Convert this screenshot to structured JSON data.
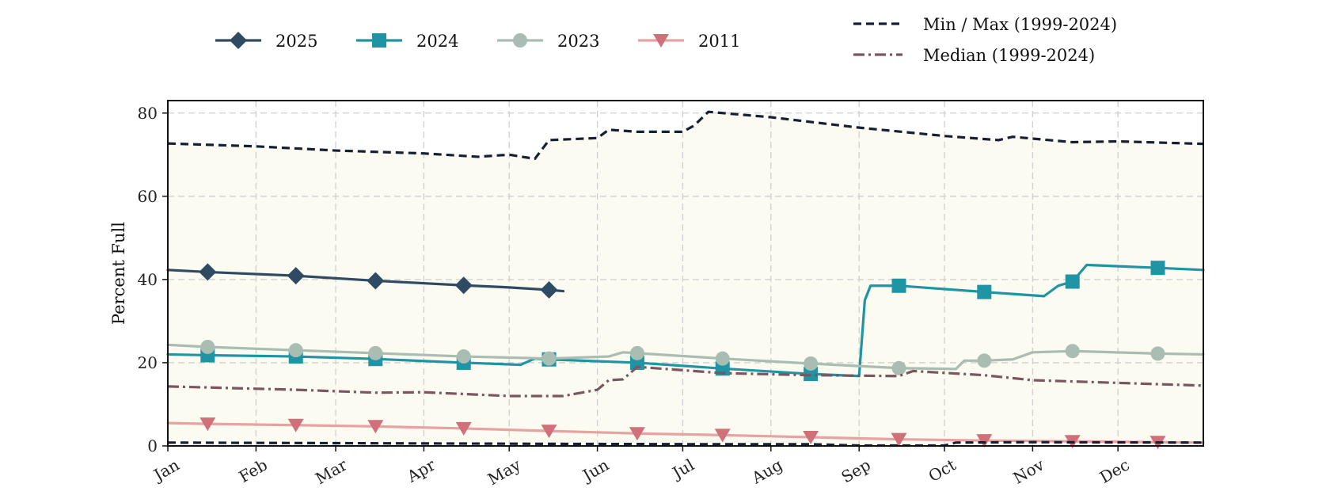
{
  "chart_data": {
    "type": "line",
    "ylabel": "Percent Full",
    "ylim": [
      0,
      83
    ],
    "yticks": [
      0,
      20,
      40,
      60,
      80
    ],
    "x_range": [
      "Jan 1",
      "Dec 31"
    ],
    "month_labels": [
      "Jan",
      "Feb",
      "Mar",
      "Apr",
      "May",
      "Jun",
      "Jul",
      "Aug",
      "Sep",
      "Oct",
      "Nov",
      "Dec"
    ],
    "grid": true,
    "legend_position": "top",
    "series": [
      {
        "name": "2025",
        "color": "#2f4b63",
        "marker": "diamond",
        "style": "solid",
        "points": [
          [
            "Jan 1",
            42.3
          ],
          [
            "Jan 15",
            41.8
          ],
          [
            "Feb 15",
            40.9
          ],
          [
            "Mar 15",
            39.7
          ],
          [
            "Apr 15",
            38.6
          ],
          [
            "May 1",
            38.1
          ],
          [
            "May 15",
            37.5
          ],
          [
            "May 20",
            37.2
          ]
        ]
      },
      {
        "name": "2024",
        "color": "#1f94a4",
        "marker": "square",
        "style": "solid",
        "points": [
          [
            "Jan 1",
            22.0
          ],
          [
            "Jan 15",
            21.8
          ],
          [
            "Feb 15",
            21.5
          ],
          [
            "Mar 15",
            20.9
          ],
          [
            "Apr 15",
            20.0
          ],
          [
            "May 5",
            19.5
          ],
          [
            "May 10",
            21.0
          ],
          [
            "May 15",
            20.8
          ],
          [
            "Jun 15",
            20.0
          ],
          [
            "Jul 15",
            18.6
          ],
          [
            "Aug 15",
            17.3
          ],
          [
            "Sep 1",
            16.8
          ],
          [
            "Sep 3",
            35.0
          ],
          [
            "Sep 5",
            38.5
          ],
          [
            "Sep 15",
            38.5
          ],
          [
            "Oct 15",
            37.0
          ],
          [
            "Nov 5",
            36.0
          ],
          [
            "Nov 10",
            38.5
          ],
          [
            "Nov 15",
            39.5
          ],
          [
            "Nov 20",
            43.5
          ],
          [
            "Dec 15",
            42.8
          ],
          [
            "Dec 31",
            42.3
          ]
        ]
      },
      {
        "name": "2023",
        "color": "#a9bdb2",
        "marker": "circle",
        "style": "solid",
        "points": [
          [
            "Jan 1",
            24.3
          ],
          [
            "Jan 15",
            23.8
          ],
          [
            "Feb 15",
            23.0
          ],
          [
            "Mar 15",
            22.3
          ],
          [
            "Apr 15",
            21.5
          ],
          [
            "May 15",
            21.0
          ],
          [
            "Jun 5",
            21.5
          ],
          [
            "Jun 10",
            22.5
          ],
          [
            "Jun 15",
            22.3
          ],
          [
            "Jul 15",
            21.0
          ],
          [
            "Aug 15",
            19.8
          ],
          [
            "Sep 15",
            18.7
          ],
          [
            "Oct 5",
            18.5
          ],
          [
            "Oct 8",
            20.5
          ],
          [
            "Oct 15",
            20.5
          ],
          [
            "Oct 25",
            20.8
          ],
          [
            "Nov 1",
            22.5
          ],
          [
            "Nov 15",
            22.8
          ],
          [
            "Dec 15",
            22.2
          ],
          [
            "Dec 31",
            22.0
          ]
        ]
      },
      {
        "name": "2011",
        "color": "#e8a2a2",
        "marker_color": "#d0707a",
        "marker": "triangle-down",
        "style": "solid",
        "points": [
          [
            "Jan 1",
            5.5
          ],
          [
            "Jan 15",
            5.3
          ],
          [
            "Feb 15",
            5.0
          ],
          [
            "Mar 15",
            4.7
          ],
          [
            "Apr 15",
            4.2
          ],
          [
            "May 15",
            3.6
          ],
          [
            "Jun 15",
            3.0
          ],
          [
            "Jul 15",
            2.6
          ],
          [
            "Aug 15",
            2.1
          ],
          [
            "Sep 15",
            1.6
          ],
          [
            "Oct 15",
            1.3
          ],
          [
            "Nov 15",
            1.1
          ],
          [
            "Dec 15",
            0.9
          ],
          [
            "Dec 31",
            0.8
          ]
        ]
      },
      {
        "name": "Min / Max (1999-2024)",
        "role": "max",
        "color": "#152033",
        "style": "dashed",
        "points": [
          [
            "Jan 1",
            72.7
          ],
          [
            "Feb 1",
            72.0
          ],
          [
            "Mar 1",
            71.0
          ],
          [
            "Apr 1",
            70.3
          ],
          [
            "Apr 20",
            69.5
          ],
          [
            "May 1",
            70.0
          ],
          [
            "May 10",
            69.0
          ],
          [
            "May 15",
            73.5
          ],
          [
            "Jun 1",
            74.0
          ],
          [
            "Jun 5",
            76.0
          ],
          [
            "Jun 15",
            75.5
          ],
          [
            "Jul 1",
            75.5
          ],
          [
            "Jul 5",
            77.0
          ],
          [
            "Jul 10",
            80.3
          ],
          [
            "Aug 1",
            79.0
          ],
          [
            "Sep 1",
            76.5
          ],
          [
            "Oct 1",
            74.5
          ],
          [
            "Oct 20",
            73.5
          ],
          [
            "Oct 25",
            74.3
          ],
          [
            "Nov 15",
            73.0
          ],
          [
            "Dec 1",
            73.2
          ],
          [
            "Dec 31",
            72.6
          ]
        ]
      },
      {
        "name": "Min",
        "role": "min",
        "color": "#152033",
        "style": "dashed",
        "points": [
          [
            "Jan 1",
            0.8
          ],
          [
            "May 15",
            0.5
          ],
          [
            "Jul 15",
            0.4
          ],
          [
            "Aug 15",
            0.4
          ],
          [
            "Sep 1",
            0.1
          ],
          [
            "Oct 1",
            0.1
          ],
          [
            "Oct 5",
            0.8
          ],
          [
            "Nov 1",
            0.9
          ],
          [
            "Dec 31",
            0.8
          ]
        ]
      },
      {
        "name": "Median (1999-2024)",
        "color": "#7b5560",
        "style": "dashdot",
        "points": [
          [
            "Jan 1",
            14.3
          ],
          [
            "Feb 15",
            13.5
          ],
          [
            "Mar 15",
            12.8
          ],
          [
            "Apr 1",
            12.9
          ],
          [
            "May 1",
            12.0
          ],
          [
            "May 20",
            12.0
          ],
          [
            "Jun 1",
            13.5
          ],
          [
            "Jun 5",
            15.8
          ],
          [
            "Jun 10",
            16.0
          ],
          [
            "Jun 15",
            19.0
          ],
          [
            "Jul 15",
            17.5
          ],
          [
            "Aug 15",
            17.0
          ],
          [
            "Sep 15",
            16.8
          ],
          [
            "Sep 20",
            18.0
          ],
          [
            "Oct 15",
            17.0
          ],
          [
            "Nov 1",
            15.8
          ],
          [
            "Nov 15",
            15.5
          ],
          [
            "Dec 31",
            14.5
          ]
        ]
      }
    ],
    "min_max_fill_color": "#fbfbf1"
  }
}
